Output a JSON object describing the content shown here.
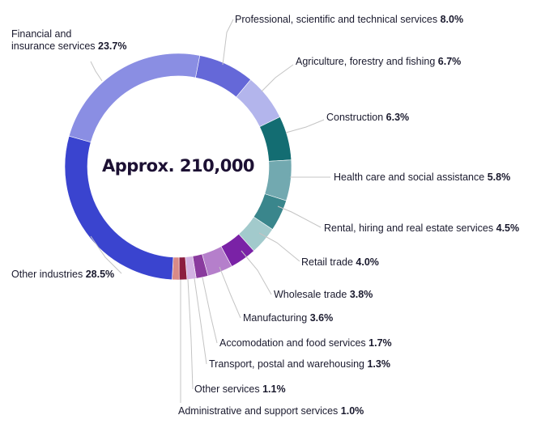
{
  "chart_data": {
    "type": "pie",
    "center_label": "Approx. 210,000",
    "slices": [
      {
        "name": "Professional, scientific and technical services",
        "value": 8.0,
        "value_label": "8.0%",
        "color": "#6568d8"
      },
      {
        "name": "Agriculture, forestry and fishing",
        "value": 6.7,
        "value_label": "6.7%",
        "color": "#b3b5ec"
      },
      {
        "name": "Construction",
        "value": 6.3,
        "value_label": "6.3%",
        "color": "#136d72"
      },
      {
        "name": "Health care and social assistance",
        "value": 5.8,
        "value_label": "5.8%",
        "color": "#72a9b0"
      },
      {
        "name": "Rental, hiring and real estate services",
        "value": 4.5,
        "value_label": "4.5%",
        "color": "#3a868c"
      },
      {
        "name": "Retail trade",
        "value": 4.0,
        "value_label": "4.0%",
        "color": "#a2cacc"
      },
      {
        "name": "Wholesale trade",
        "value": 3.8,
        "value_label": "3.8%",
        "color": "#7a22a6"
      },
      {
        "name": "Manufacturing",
        "value": 3.6,
        "value_label": "3.6%",
        "color": "#b57fcb"
      },
      {
        "name": "Accomodation and food services",
        "value": 1.7,
        "value_label": "1.7%",
        "color": "#8a3b9e"
      },
      {
        "name": "Transport, postal and warehousing",
        "value": 1.3,
        "value_label": "1.3%",
        "color": "#d3b2e3"
      },
      {
        "name": "Other services",
        "value": 1.1,
        "value_label": "1.1%",
        "color": "#8c1d3f"
      },
      {
        "name": "Administrative and support services",
        "value": 1.0,
        "value_label": "1.0%",
        "color": "#d98a87"
      },
      {
        "name": "Other industries",
        "value": 28.5,
        "value_label": "28.5%",
        "color": "#3a44cf"
      },
      {
        "name": "Financial and insurance services",
        "value": 23.7,
        "value_label": "23.7%",
        "color": "#8a8ee3"
      }
    ]
  }
}
